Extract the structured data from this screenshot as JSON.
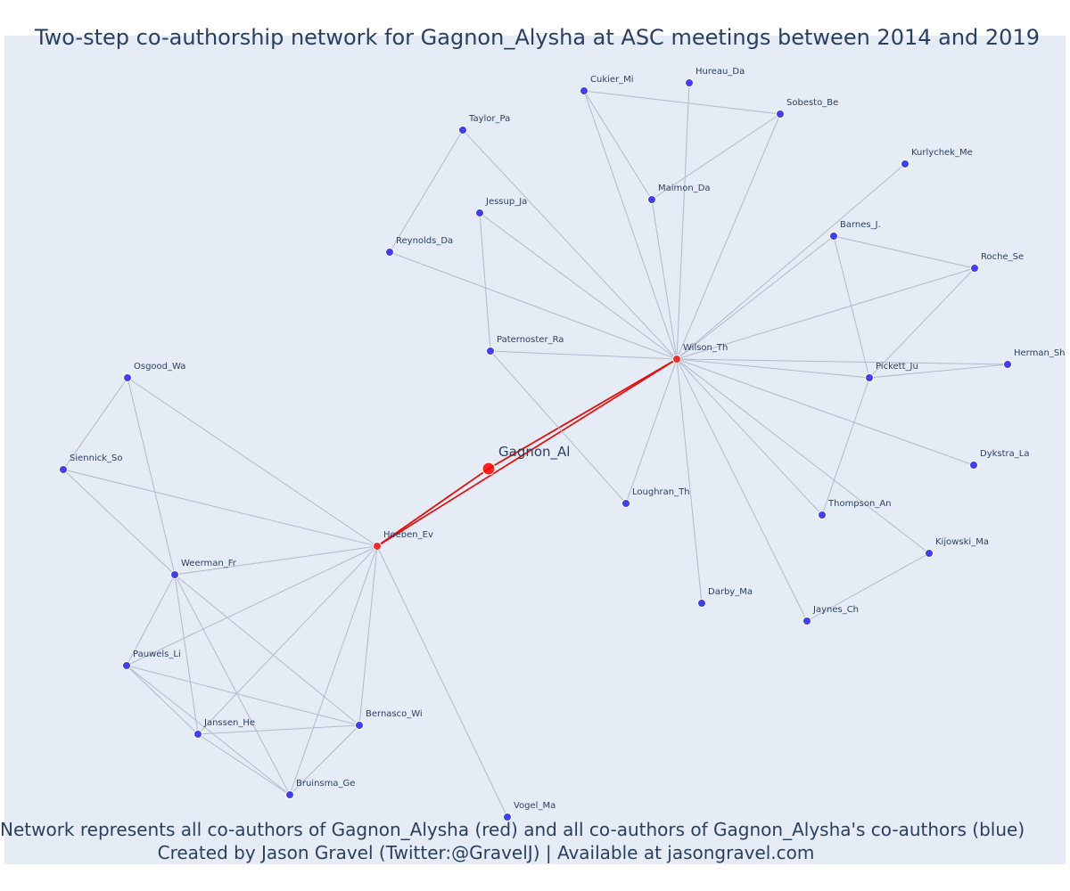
{
  "title": "Two-step co-authorship network for Gagnon_Alysha at ASC meetings between 2014 and 2019",
  "footer": {
    "line1": "Network represents all co-authors of Gagnon_Alysha (red) and all co-authors of Gagnon_Alysha's co-authors (blue)",
    "line2": "Created by Jason Gravel (Twitter:@GravelJ) | Available at jasongravel.com"
  },
  "colors": {
    "background": "#e5ecf6",
    "ego": "#ff0000",
    "coauthor": "#ef2c2c",
    "second_step": "#4040e8",
    "edge": "#b4b8cc",
    "ego_edge": "#e01010",
    "text": "#2a3f5f"
  },
  "nodes": [
    {
      "id": "Gagnon_Al",
      "group": "ego"
    },
    {
      "id": "Wilson_Th",
      "group": "coauthor"
    },
    {
      "id": "Hoeben_Ev",
      "group": "coauthor"
    },
    {
      "id": "Cukier_Mi",
      "group": "second"
    },
    {
      "id": "Hureau_Da",
      "group": "second"
    },
    {
      "id": "Sobesto_Be",
      "group": "second"
    },
    {
      "id": "Taylor_Pa",
      "group": "second"
    },
    {
      "id": "Maimon_Da",
      "group": "second"
    },
    {
      "id": "Kurlychek_Me",
      "group": "second"
    },
    {
      "id": "Jessup_Ja",
      "group": "second"
    },
    {
      "id": "Barnes_J.",
      "group": "second"
    },
    {
      "id": "Reynolds_Da",
      "group": "second"
    },
    {
      "id": "Roche_Se",
      "group": "second"
    },
    {
      "id": "Paternoster_Ra",
      "group": "second"
    },
    {
      "id": "Herman_Sh",
      "group": "second"
    },
    {
      "id": "Pickett_Ju",
      "group": "second"
    },
    {
      "id": "Osgood_Wa",
      "group": "second"
    },
    {
      "id": "Dykstra_La",
      "group": "second"
    },
    {
      "id": "Siennick_So",
      "group": "second"
    },
    {
      "id": "Loughran_Th",
      "group": "second"
    },
    {
      "id": "Thompson_An",
      "group": "second"
    },
    {
      "id": "Kijowski_Ma",
      "group": "second"
    },
    {
      "id": "Weerman_Fr",
      "group": "second"
    },
    {
      "id": "Darby_Ma",
      "group": "second"
    },
    {
      "id": "Jaynes_Ch",
      "group": "second"
    },
    {
      "id": "Pauwels_Li",
      "group": "second"
    },
    {
      "id": "Bernasco_Wi",
      "group": "second"
    },
    {
      "id": "Janssen_He",
      "group": "second"
    },
    {
      "id": "Bruinsma_Ge",
      "group": "second"
    },
    {
      "id": "Vogel_Ma",
      "group": "second"
    }
  ],
  "edges": [
    [
      "Gagnon_Al",
      "Wilson_Th"
    ],
    [
      "Gagnon_Al",
      "Hoeben_Ev"
    ],
    [
      "Wilson_Th",
      "Hoeben_Ev"
    ],
    [
      "Wilson_Th",
      "Cukier_Mi"
    ],
    [
      "Wilson_Th",
      "Hureau_Da"
    ],
    [
      "Wilson_Th",
      "Sobesto_Be"
    ],
    [
      "Wilson_Th",
      "Taylor_Pa"
    ],
    [
      "Wilson_Th",
      "Maimon_Da"
    ],
    [
      "Wilson_Th",
      "Kurlychek_Me"
    ],
    [
      "Wilson_Th",
      "Jessup_Ja"
    ],
    [
      "Wilson_Th",
      "Barnes_J."
    ],
    [
      "Wilson_Th",
      "Reynolds_Da"
    ],
    [
      "Wilson_Th",
      "Roche_Se"
    ],
    [
      "Wilson_Th",
      "Paternoster_Ra"
    ],
    [
      "Wilson_Th",
      "Herman_Sh"
    ],
    [
      "Wilson_Th",
      "Pickett_Ju"
    ],
    [
      "Wilson_Th",
      "Dykstra_La"
    ],
    [
      "Wilson_Th",
      "Loughran_Th"
    ],
    [
      "Wilson_Th",
      "Thompson_An"
    ],
    [
      "Wilson_Th",
      "Kijowski_Ma"
    ],
    [
      "Wilson_Th",
      "Darby_Ma"
    ],
    [
      "Wilson_Th",
      "Jaynes_Ch"
    ],
    [
      "Cukier_Mi",
      "Sobesto_Be"
    ],
    [
      "Cukier_Mi",
      "Maimon_Da"
    ],
    [
      "Maimon_Da",
      "Sobesto_Be"
    ],
    [
      "Taylor_Pa",
      "Reynolds_Da"
    ],
    [
      "Jessup_Ja",
      "Paternoster_Ra"
    ],
    [
      "Paternoster_Ra",
      "Loughran_Th"
    ],
    [
      "Barnes_J.",
      "Roche_Se"
    ],
    [
      "Barnes_J.",
      "Pickett_Ju"
    ],
    [
      "Roche_Se",
      "Pickett_Ju"
    ],
    [
      "Pickett_Ju",
      "Herman_Sh"
    ],
    [
      "Pickett_Ju",
      "Thompson_An"
    ],
    [
      "Kijowski_Ma",
      "Jaynes_Ch"
    ],
    [
      "Hoeben_Ev",
      "Osgood_Wa"
    ],
    [
      "Hoeben_Ev",
      "Siennick_So"
    ],
    [
      "Hoeben_Ev",
      "Weerman_Fr"
    ],
    [
      "Hoeben_Ev",
      "Pauwels_Li"
    ],
    [
      "Hoeben_Ev",
      "Bernasco_Wi"
    ],
    [
      "Hoeben_Ev",
      "Janssen_He"
    ],
    [
      "Hoeben_Ev",
      "Bruinsma_Ge"
    ],
    [
      "Hoeben_Ev",
      "Vogel_Ma"
    ],
    [
      "Osgood_Wa",
      "Siennick_So"
    ],
    [
      "Osgood_Wa",
      "Weerman_Fr"
    ],
    [
      "Siennick_So",
      "Weerman_Fr"
    ],
    [
      "Weerman_Fr",
      "Pauwels_Li"
    ],
    [
      "Weerman_Fr",
      "Janssen_He"
    ],
    [
      "Weerman_Fr",
      "Bruinsma_Ge"
    ],
    [
      "Weerman_Fr",
      "Bernasco_Wi"
    ],
    [
      "Pauwels_Li",
      "Janssen_He"
    ],
    [
      "Pauwels_Li",
      "Bruinsma_Ge"
    ],
    [
      "Pauwels_Li",
      "Bernasco_Wi"
    ],
    [
      "Janssen_He",
      "Bernasco_Wi"
    ],
    [
      "Janssen_He",
      "Bruinsma_Ge"
    ],
    [
      "Bernasco_Wi",
      "Bruinsma_Ge"
    ]
  ]
}
